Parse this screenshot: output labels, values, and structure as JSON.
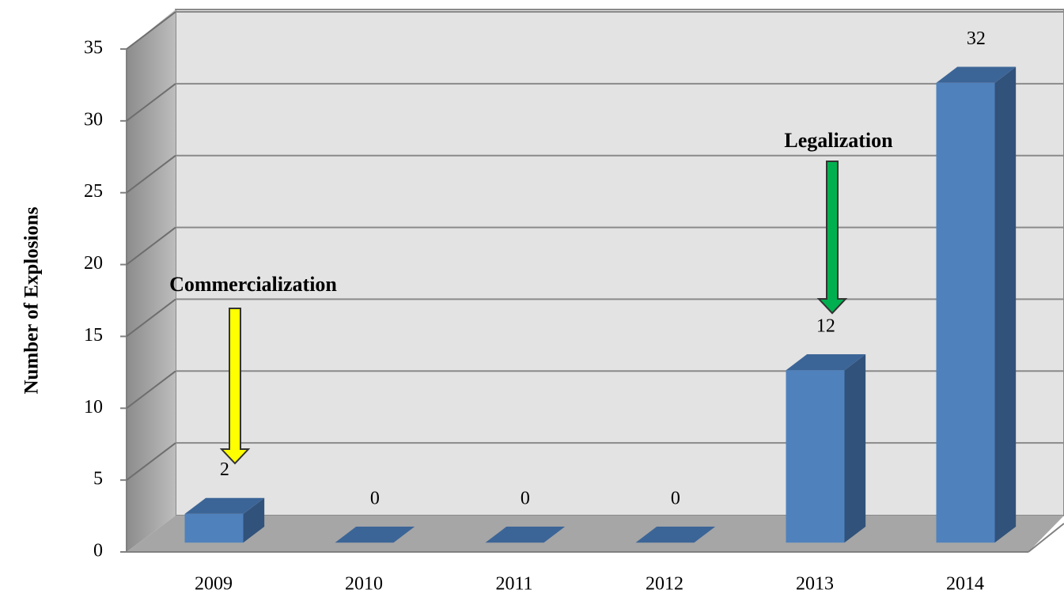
{
  "chart_data": {
    "type": "bar3d",
    "y_label": "Number of Explosions",
    "categories": [
      "2009",
      "2010",
      "2011",
      "2012",
      "2013",
      "2014"
    ],
    "values": [
      2,
      0,
      0,
      0,
      12,
      32
    ],
    "color": "#4f81bd",
    "ylim": [
      0,
      35
    ],
    "yticks": [
      0,
      5,
      10,
      15,
      20,
      25,
      30,
      35
    ],
    "grid": true,
    "annotations": [
      {
        "text": "Commercialization",
        "category": 0
      },
      {
        "text": "Legalization",
        "category": 4
      }
    ]
  }
}
